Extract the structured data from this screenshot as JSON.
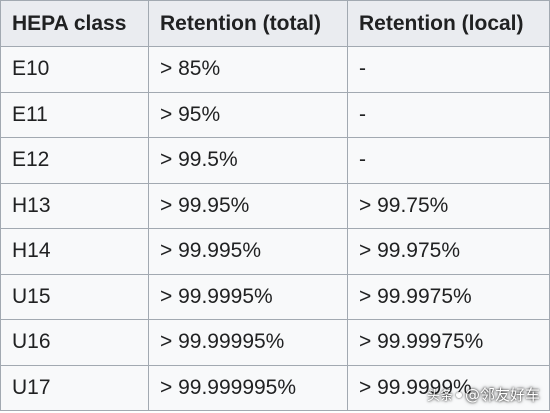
{
  "table": {
    "headers": [
      "HEPA class",
      "Retention (total)",
      "Retention (local)"
    ],
    "rows": [
      [
        "E10",
        "> 85%",
        "-"
      ],
      [
        "E11",
        "> 95%",
        "-"
      ],
      [
        "E12",
        "> 99.5%",
        "-"
      ],
      [
        "H13",
        "> 99.95%",
        "> 99.75%"
      ],
      [
        "H14",
        "> 99.995%",
        "> 99.975%"
      ],
      [
        "U15",
        "> 99.9995%",
        "> 99.9975%"
      ],
      [
        "U16",
        "> 99.99995%",
        "> 99.99975%"
      ],
      [
        "U17",
        "> 99.999995%",
        "> 99.9999%"
      ]
    ]
  },
  "watermark": {
    "source": "头条",
    "author": "@邻友好车"
  },
  "colors": {
    "header_bg": "#eaecf0",
    "cell_bg": "#f8f9fa",
    "border": "#a2a9b1",
    "text": "#202122"
  }
}
